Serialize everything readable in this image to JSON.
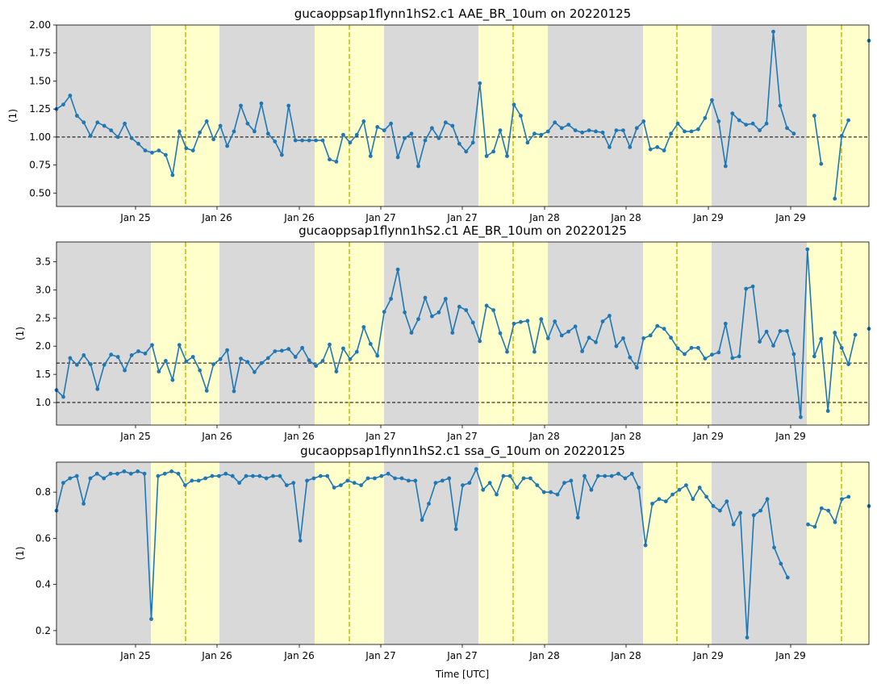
{
  "figure": {
    "xlabel": "Time [UTC]",
    "day_ticks": [
      "Jan 25",
      "Jan 26",
      "Jan 26",
      "Jan 27",
      "Jan 27",
      "Jan 28",
      "Jan 28",
      "Jan 29",
      "Jan 29"
    ],
    "colors": {
      "line": "#1f77b4",
      "night_band": "#d9d9d9",
      "day_band": "#ffffcc",
      "noon_line": "#bfbf00",
      "reference_line": "#000000"
    }
  },
  "chart_data": [
    {
      "type": "line",
      "title": "gucaoppsap1flynn1hS2.c1 AAE_BR_10um on 20220125",
      "ylabel": "(1)",
      "ylim": [
        0.38,
        2.0
      ],
      "yticks": [
        0.5,
        0.75,
        1.0,
        1.25,
        1.5,
        1.75,
        2.0
      ],
      "ytick_labels": [
        "0.50",
        "0.75",
        "1.00",
        "1.25",
        "1.50",
        "1.75",
        "2.00"
      ],
      "reference_lines": [
        1.0
      ],
      "values": [
        1.25,
        1.29,
        1.37,
        1.19,
        1.13,
        1.01,
        1.13,
        1.1,
        1.06,
        1.0,
        1.12,
        0.99,
        0.94,
        0.88,
        0.86,
        0.88,
        0.84,
        0.66,
        1.05,
        0.9,
        0.88,
        1.04,
        1.14,
        0.98,
        1.1,
        0.92,
        1.05,
        1.28,
        1.12,
        1.05,
        1.3,
        1.03,
        0.96,
        0.84,
        1.28,
        0.97,
        0.97,
        0.97,
        0.97,
        0.97,
        0.8,
        0.78,
        1.02,
        0.95,
        1.02,
        1.14,
        0.83,
        1.09,
        1.06,
        1.12,
        0.82,
        0.99,
        1.03,
        0.74,
        0.97,
        1.08,
        0.99,
        1.13,
        1.1,
        0.94,
        0.87,
        0.95,
        1.48,
        0.83,
        0.87,
        1.06,
        0.83,
        1.29,
        1.19,
        0.95,
        1.03,
        1.02,
        1.05,
        1.13,
        1.08,
        1.11,
        1.06,
        1.04,
        1.06,
        1.05,
        1.04,
        0.91,
        1.06,
        1.06,
        0.91,
        1.08,
        1.14,
        0.89,
        0.91,
        0.88,
        1.03,
        1.12,
        1.05,
        1.05,
        1.07,
        1.17,
        1.33,
        1.14,
        0.74,
        1.21,
        1.15,
        1.11,
        1.12,
        1.06,
        1.12,
        1.94,
        1.28,
        1.08,
        1.03,
        null,
        null,
        1.19,
        0.76,
        null,
        0.45,
        1.01,
        1.15,
        null,
        null,
        1.86
      ]
    },
    {
      "type": "line",
      "title": "gucaoppsap1flynn1hS2.c1 AE_BR_10um on 20220125",
      "ylabel": "(1)",
      "ylim": [
        0.6,
        3.85
      ],
      "yticks": [
        1.0,
        1.5,
        2.0,
        2.5,
        3.0,
        3.5
      ],
      "ytick_labels": [
        "1.0",
        "1.5",
        "2.0",
        "2.5",
        "3.0",
        "3.5"
      ],
      "reference_lines": [
        1.0,
        1.7
      ],
      "values": [
        1.22,
        1.1,
        1.79,
        1.67,
        1.84,
        1.68,
        1.24,
        1.67,
        1.85,
        1.81,
        1.57,
        1.84,
        1.91,
        1.87,
        2.02,
        1.55,
        1.74,
        1.4,
        2.02,
        1.73,
        1.81,
        1.57,
        1.21,
        1.68,
        1.77,
        1.93,
        1.2,
        1.78,
        1.72,
        1.54,
        1.7,
        1.79,
        1.91,
        1.92,
        1.95,
        1.81,
        1.97,
        1.75,
        1.65,
        1.74,
        2.03,
        1.55,
        1.96,
        1.77,
        1.9,
        2.34,
        2.04,
        1.83,
        2.61,
        2.84,
        3.36,
        2.6,
        2.24,
        2.48,
        2.86,
        2.53,
        2.6,
        2.84,
        2.24,
        2.7,
        2.64,
        2.42,
        2.09,
        2.72,
        2.64,
        2.23,
        1.9,
        2.4,
        2.43,
        2.45,
        1.9,
        2.48,
        2.14,
        2.44,
        2.19,
        2.26,
        2.35,
        1.91,
        2.15,
        2.07,
        2.44,
        2.54,
        2.0,
        2.14,
        1.8,
        1.62,
        2.14,
        2.19,
        2.36,
        2.31,
        2.15,
        1.96,
        1.86,
        1.97,
        1.97,
        1.78,
        1.85,
        1.89,
        2.4,
        1.79,
        1.82,
        3.02,
        3.06,
        2.08,
        2.26,
        2.01,
        2.27,
        2.27,
        1.86,
        0.74,
        3.72,
        1.82,
        2.13,
        0.85,
        2.24,
        1.97,
        1.68,
        2.2,
        null,
        2.31
      ]
    },
    {
      "type": "line",
      "title": "gucaoppsap1flynn1hS2.c1 ssa_G_10um on 20220125",
      "ylabel": "(1)",
      "ylim": [
        0.14,
        0.93
      ],
      "yticks": [
        0.2,
        0.4,
        0.6,
        0.8
      ],
      "ytick_labels": [
        "0.2",
        "0.4",
        "0.6",
        "0.8"
      ],
      "reference_lines": [],
      "values": [
        0.72,
        0.84,
        0.86,
        0.87,
        0.75,
        0.86,
        0.88,
        0.86,
        0.88,
        0.88,
        0.89,
        0.88,
        0.89,
        0.88,
        0.25,
        0.87,
        0.88,
        0.89,
        0.88,
        0.83,
        0.85,
        0.85,
        0.86,
        0.87,
        0.87,
        0.88,
        0.87,
        0.84,
        0.87,
        0.87,
        0.87,
        0.86,
        0.87,
        0.87,
        0.83,
        0.84,
        0.59,
        0.85,
        0.86,
        0.87,
        0.87,
        0.82,
        0.83,
        0.85,
        0.84,
        0.83,
        0.86,
        0.86,
        0.87,
        0.88,
        0.86,
        0.86,
        0.85,
        0.85,
        0.68,
        0.75,
        0.84,
        0.85,
        0.86,
        0.64,
        0.83,
        0.84,
        0.9,
        0.81,
        0.84,
        0.79,
        0.87,
        0.87,
        0.82,
        0.86,
        0.86,
        0.83,
        0.8,
        0.8,
        0.79,
        0.84,
        0.85,
        0.69,
        0.87,
        0.81,
        0.87,
        0.87,
        0.87,
        0.88,
        0.86,
        0.88,
        0.82,
        0.57,
        0.75,
        0.77,
        0.76,
        0.79,
        0.81,
        0.83,
        0.77,
        0.82,
        0.78,
        0.74,
        0.72,
        0.76,
        0.66,
        0.71,
        0.17,
        0.7,
        0.72,
        0.77,
        0.56,
        0.49,
        0.43,
        null,
        null,
        0.66,
        0.65,
        0.73,
        0.72,
        0.67,
        0.77,
        0.78,
        null,
        null,
        0.74
      ]
    }
  ]
}
